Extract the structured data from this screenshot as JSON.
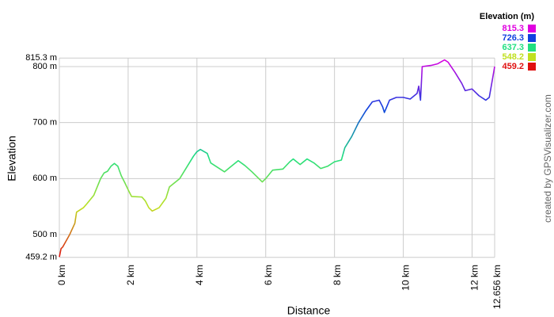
{
  "chart_data": {
    "type": "line",
    "xlabel": "Distance",
    "ylabel": "Elevation",
    "credit": "created by GPSVisualizer.com",
    "x": [
      0,
      0.05,
      0.1,
      0.3,
      0.45,
      0.5,
      0.7,
      0.8,
      1.0,
      1.2,
      1.3,
      1.4,
      1.5,
      1.6,
      1.7,
      1.8,
      1.9,
      2.0,
      2.1,
      2.4,
      2.5,
      2.6,
      2.7,
      2.9,
      3.1,
      3.2,
      3.4,
      3.5,
      3.7,
      3.9,
      4.0,
      4.1,
      4.3,
      4.4,
      4.6,
      4.8,
      5.0,
      5.2,
      5.4,
      5.6,
      5.8,
      5.9,
      6.0,
      6.2,
      6.5,
      6.7,
      6.8,
      7.0,
      7.2,
      7.4,
      7.6,
      7.8,
      8.0,
      8.2,
      8.3,
      8.5,
      8.7,
      8.9,
      9.1,
      9.3,
      9.4,
      9.45,
      9.6,
      9.8,
      10.0,
      10.2,
      10.4,
      10.45,
      10.5,
      10.55,
      10.8,
      11.0,
      11.2,
      11.3,
      11.5,
      11.7,
      11.8,
      12.0,
      12.2,
      12.4,
      12.5,
      12.6,
      12.656
    ],
    "values": [
      460,
      475,
      478,
      500,
      520,
      540,
      548,
      555,
      570,
      600,
      610,
      613,
      622,
      627,
      622,
      605,
      593,
      580,
      568,
      567,
      560,
      548,
      542,
      548,
      565,
      585,
      595,
      600,
      620,
      640,
      648,
      652,
      645,
      628,
      620,
      612,
      622,
      632,
      623,
      612,
      600,
      594,
      600,
      615,
      617,
      630,
      635,
      625,
      635,
      628,
      618,
      622,
      630,
      633,
      655,
      675,
      700,
      720,
      737,
      740,
      728,
      718,
      740,
      745,
      745,
      742,
      752,
      765,
      740,
      800,
      802,
      805,
      812,
      808,
      790,
      770,
      757,
      760,
      748,
      740,
      745,
      780,
      800
    ],
    "xlim": [
      0,
      12.656
    ],
    "xticks": [
      {
        "value": 0,
        "label": "0 km"
      },
      {
        "value": 2,
        "label": "2 km"
      },
      {
        "value": 4,
        "label": "4 km"
      },
      {
        "value": 6,
        "label": "6 km"
      },
      {
        "value": 8,
        "label": "8 km"
      },
      {
        "value": 10,
        "label": "10 km"
      },
      {
        "value": 12,
        "label": "12 km"
      },
      {
        "value": 12.656,
        "label": "12.656 km"
      }
    ],
    "ylim": [
      459.2,
      815.3
    ],
    "yticks": [
      {
        "value": 459.2,
        "label": "459.2 m"
      },
      {
        "value": 500,
        "label": "500 m"
      },
      {
        "value": 600,
        "label": "600 m"
      },
      {
        "value": 700,
        "label": "700 m"
      },
      {
        "value": 800,
        "label": "800 m"
      },
      {
        "value": 815.3,
        "label": "815.3 m"
      }
    ],
    "grid": true,
    "legend": {
      "title": "Elevation (m)",
      "entries": [
        {
          "value": 815.3,
          "color": "#e000e0"
        },
        {
          "value": 726.3,
          "color": "#1040e0"
        },
        {
          "value": 637.3,
          "color": "#20e080"
        },
        {
          "value": 548.2,
          "color": "#c0e020"
        },
        {
          "value": 459.2,
          "color": "#e01010"
        }
      ]
    }
  }
}
